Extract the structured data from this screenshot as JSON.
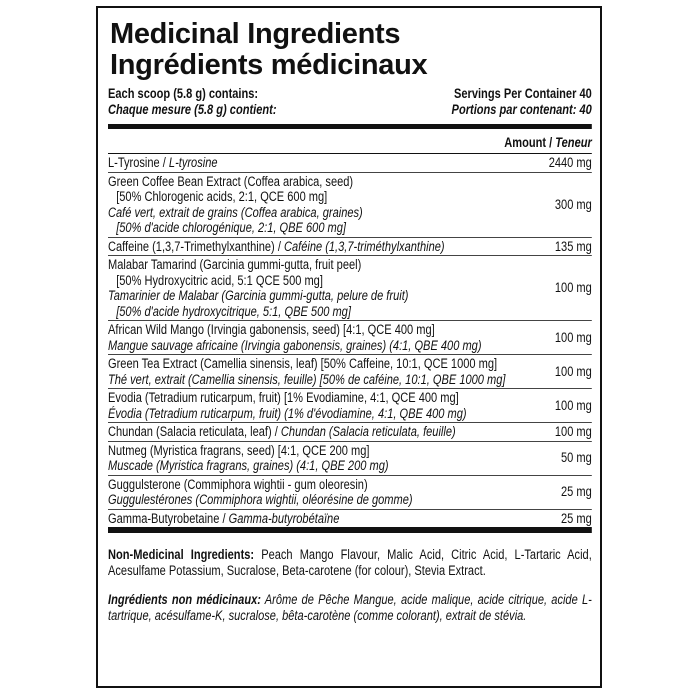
{
  "title_en": "Medicinal Ingredients",
  "title_fr": "Ingrédients médicinaux",
  "serving_en": "Each scoop  (5.8 g) contains:",
  "serving_fr": "Chaque mesure (5.8 g) contient:",
  "servings_en": "Servings Per Container  40",
  "servings_fr": "Portions par contenant: 40",
  "amount_en": "Amount / ",
  "amount_fr": "Teneur",
  "ingredients": [
    {
      "lines": [
        {
          "t": "L-Tyrosine  /  ",
          "s": ""
        },
        {
          "t": "L-tyrosine",
          "s": "i"
        }
      ],
      "amount": "2440 mg",
      "inline": true
    },
    {
      "lines": [
        {
          "t": "Green Coffee Bean Extract (Coffea arabica, seed)",
          "s": ""
        },
        {
          "t": "[50% Chlorogenic acids, 2:1, QCE 600 mg]",
          "s": "ind"
        },
        {
          "t": "Café vert, extrait de grains (Coffea arabica, graines)",
          "s": "i"
        },
        {
          "t": "[50% d'acide chlorogénique, 2:1, QBE 600 mg]",
          "s": "i ind"
        }
      ],
      "amount": "300 mg"
    },
    {
      "lines": [
        {
          "t": "Caffeine (1,3,7-Trimethylxanthine) / ",
          "s": ""
        },
        {
          "t": "Caféine (1,3,7-triméthylxanthine)",
          "s": "i"
        }
      ],
      "amount": "135 mg",
      "inline": true
    },
    {
      "lines": [
        {
          "t": "Malabar Tamarind (Garcinia gummi-gutta, fruit peel)",
          "s": ""
        },
        {
          "t": "[50% Hydroxycitric acid, 5:1 QCE 500 mg]",
          "s": "ind"
        },
        {
          "t": "Tamarinier de Malabar (Garcinia gummi-gutta, pelure de fruit)",
          "s": "i"
        },
        {
          "t": "[50% d'acide hydroxycitrique, 5:1, QBE 500 mg]",
          "s": "i ind"
        }
      ],
      "amount": "100 mg"
    },
    {
      "lines": [
        {
          "t": "African Wild Mango (Irvingia gabonensis, seed) [4:1, QCE 400 mg]",
          "s": ""
        },
        {
          "t": "Mangue sauvage africaine (Irvingia gabonensis, graines) (4:1, QBE 400 mg)",
          "s": "i"
        }
      ],
      "amount": "100 mg"
    },
    {
      "lines": [
        {
          "t": "Green Tea Extract (Camellia sinensis, leaf) [50% Caffeine, 10:1, QCE 1000 mg]",
          "s": ""
        },
        {
          "t": "Thé vert, extrait (Camellia sinensis, feuille) [50% de caféine, 10:1, QBE 1000 mg]",
          "s": "i"
        }
      ],
      "amount": "100 mg"
    },
    {
      "lines": [
        {
          "t": "Evodia (Tetradium ruticarpum, fruit) [1% Evodiamine, 4:1, QCE 400 mg]",
          "s": ""
        },
        {
          "t": "Évodia (Tetradium ruticarpum, fruit) (1% d'évodiamine, 4:1, QBE 400 mg)",
          "s": "i"
        }
      ],
      "amount": "100 mg"
    },
    {
      "lines": [
        {
          "t": "Chundan (Salacia reticulata, leaf)  /  ",
          "s": ""
        },
        {
          "t": "Chundan (Salacia reticulata, feuille)",
          "s": "i"
        }
      ],
      "amount": "100 mg",
      "inline": true
    },
    {
      "lines": [
        {
          "t": "Nutmeg (Myristica fragrans, seed) [4:1, QCE 200 mg]",
          "s": ""
        },
        {
          "t": "Muscade (Myristica fragrans, graines) (4:1, QBE 200 mg)",
          "s": "i"
        }
      ],
      "amount": "50 mg"
    },
    {
      "lines": [
        {
          "t": "Guggulsterone (Commiphora wightii - gum oleoresin)",
          "s": ""
        },
        {
          "t": "Guggulestérones (Commiphora wightii, oléorésine de gomme)",
          "s": "i"
        }
      ],
      "amount": "25 mg"
    },
    {
      "lines": [
        {
          "t": "Gamma-Butyrobetaine  /  ",
          "s": ""
        },
        {
          "t": "Gamma-butyrobétaïne",
          "s": "i"
        }
      ],
      "amount": "25 mg",
      "inline": true
    }
  ],
  "nmi_en_label": "Non-Medicinal Ingredients:",
  "nmi_en": " Peach Mango Flavour, Malic Acid, Citric Acid, L-Tartaric Acid, Acesulfame Potassium, Sucralose, Beta-carotene (for colour), Stevia Extract.",
  "nmi_fr_label": "Ingrédients non médicinaux:",
  "nmi_fr": " Arôme de Pêche Mangue, acide malique, acide citrique, acide L-tartrique, acésulfame-K, sucralose, bêta-carotène (comme colorant), extrait de stévia."
}
